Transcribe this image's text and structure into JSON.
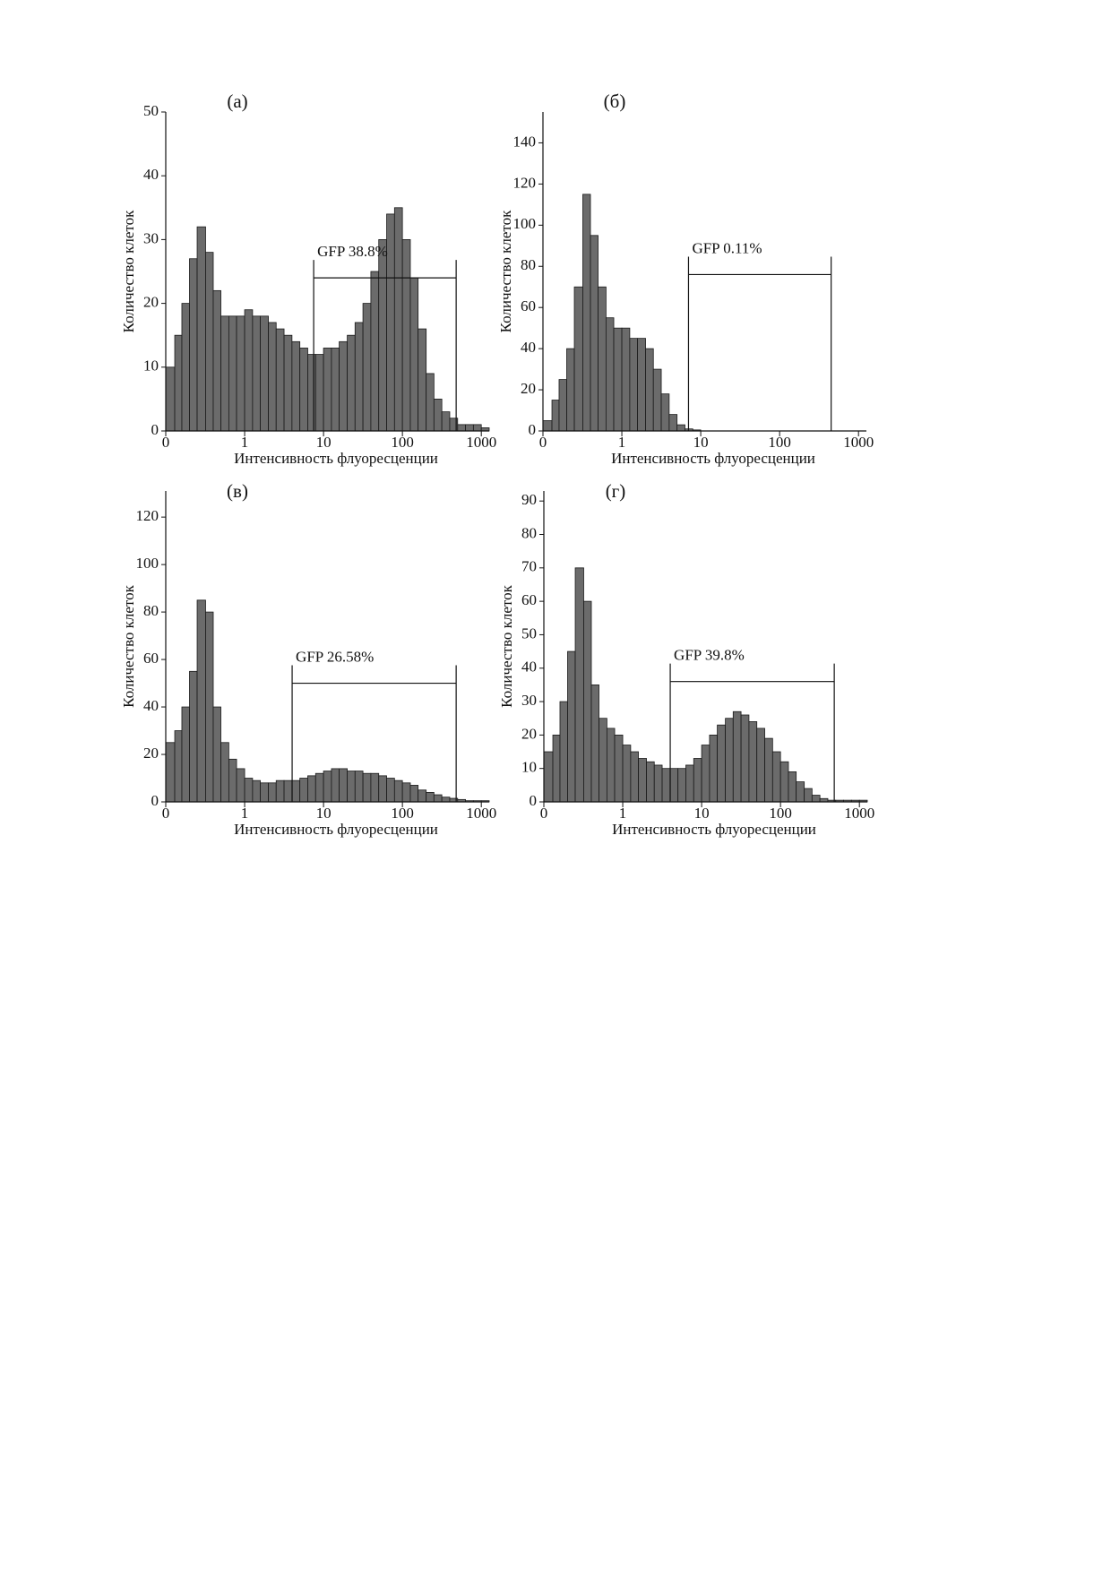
{
  "chart_data": [
    {
      "type": "histogram",
      "title": "(а)",
      "xlabel": "Интенсивность флуоресценции",
      "ylabel": "Количество клеток",
      "xscale": "log",
      "color": "#6b6b6b",
      "bins": [
        0.1,
        0.13,
        0.16,
        0.2,
        0.25,
        0.32,
        0.4,
        0.5,
        0.63,
        0.79,
        1,
        1.26,
        1.58,
        2,
        2.51,
        3.16,
        3.98,
        5.01,
        6.31,
        7.94,
        10,
        12.6,
        15.8,
        20,
        25.1,
        31.6,
        39.8,
        50.1,
        63.1,
        79.4,
        100,
        126,
        158,
        200,
        251,
        316,
        398,
        501,
        631,
        794,
        1000,
        1259
      ],
      "values": [
        10,
        15,
        20,
        27,
        32,
        28,
        22,
        18,
        18,
        18,
        19,
        18,
        18,
        17,
        16,
        15,
        14,
        13,
        12,
        12,
        13,
        13,
        14,
        15,
        17,
        20,
        25,
        30,
        34,
        35,
        30,
        24,
        16,
        9,
        5,
        3,
        2,
        1,
        1,
        1,
        0.5
      ],
      "xlim": [
        0.1,
        1259
      ],
      "xticks": [
        {
          "value": 0.1,
          "label": "0"
        },
        1,
        10,
        100,
        1000
      ],
      "ylim": [
        0,
        50
      ],
      "yticks": [
        0,
        10,
        20,
        30,
        40,
        50
      ],
      "gate": {
        "x": [
          7.5,
          480
        ],
        "y": 24,
        "label": "GFP 38.8%"
      }
    },
    {
      "type": "histogram",
      "title": "(б)",
      "xlabel": "Интенсивность флуоресценции",
      "ylabel": "Количество клеток",
      "xscale": "log",
      "color": "#6b6b6b",
      "bins": [
        0.1,
        0.13,
        0.16,
        0.2,
        0.25,
        0.32,
        0.4,
        0.5,
        0.63,
        0.79,
        1,
        1.26,
        1.58,
        2,
        2.51,
        3.16,
        3.98,
        5.01,
        6.31,
        7.94,
        10,
        12.6,
        15.8,
        20,
        25.1,
        31.6,
        39.8,
        50.1,
        63.1,
        79.4,
        100,
        126,
        158,
        200,
        251,
        316,
        398,
        501,
        631,
        794,
        1000,
        1259
      ],
      "values": [
        5,
        15,
        25,
        40,
        70,
        115,
        95,
        70,
        55,
        50,
        50,
        45,
        45,
        40,
        30,
        18,
        8,
        3,
        1,
        0.5,
        0,
        0,
        0,
        0,
        0,
        0,
        0,
        0,
        0,
        0,
        0,
        0,
        0,
        0,
        0,
        0,
        0,
        0,
        0,
        0,
        0
      ],
      "xlim": [
        0.1,
        1259
      ],
      "xticks": [
        {
          "value": 0.1,
          "label": "0"
        },
        1,
        10,
        100,
        1000
      ],
      "ylim": [
        0,
        155
      ],
      "yticks": [
        0,
        20,
        40,
        60,
        80,
        100,
        120,
        140
      ],
      "gate": {
        "x": [
          7,
          450
        ],
        "y": 76,
        "label": "GFP 0.11%"
      }
    },
    {
      "type": "histogram",
      "title": "(в)",
      "xlabel": "Интенсивность флуоресценции",
      "ylabel": "Количество клеток",
      "xscale": "log",
      "color": "#6b6b6b",
      "bins": [
        0.1,
        0.13,
        0.16,
        0.2,
        0.25,
        0.32,
        0.4,
        0.5,
        0.63,
        0.79,
        1,
        1.26,
        1.58,
        2,
        2.51,
        3.16,
        3.98,
        5.01,
        6.31,
        7.94,
        10,
        12.6,
        15.8,
        20,
        25.1,
        31.6,
        39.8,
        50.1,
        63.1,
        79.4,
        100,
        126,
        158,
        200,
        251,
        316,
        398,
        501,
        631,
        794,
        1000,
        1259
      ],
      "values": [
        25,
        30,
        40,
        55,
        85,
        80,
        40,
        25,
        18,
        14,
        10,
        9,
        8,
        8,
        9,
        9,
        9,
        10,
        11,
        12,
        13,
        14,
        14,
        13,
        13,
        12,
        12,
        11,
        10,
        9,
        8,
        7,
        5,
        4,
        3,
        2,
        1.5,
        1,
        0.5,
        0.5,
        0.5
      ],
      "xlim": [
        0.1,
        1259
      ],
      "xticks": [
        {
          "value": 0.1,
          "label": "0"
        },
        1,
        10,
        100,
        1000
      ],
      "ylim": [
        0,
        131
      ],
      "yticks": [
        0,
        20,
        40,
        60,
        80,
        100,
        120
      ],
      "gate": {
        "x": [
          4,
          480
        ],
        "y": 50,
        "label": "GFP 26.58%"
      }
    },
    {
      "type": "histogram",
      "title": "(г)",
      "xlabel": "Интенсивность флуоресценции",
      "ylabel": "Количество клеток",
      "xscale": "log",
      "color": "#6b6b6b",
      "bins": [
        0.1,
        0.13,
        0.16,
        0.2,
        0.25,
        0.32,
        0.4,
        0.5,
        0.63,
        0.79,
        1,
        1.26,
        1.58,
        2,
        2.51,
        3.16,
        3.98,
        5.01,
        6.31,
        7.94,
        10,
        12.6,
        15.8,
        20,
        25.1,
        31.6,
        39.8,
        50.1,
        63.1,
        79.4,
        100,
        126,
        158,
        200,
        251,
        316,
        398,
        501,
        631,
        794,
        1000,
        1259
      ],
      "values": [
        15,
        20,
        30,
        45,
        70,
        60,
        35,
        25,
        22,
        20,
        17,
        15,
        13,
        12,
        11,
        10,
        10,
        10,
        11,
        13,
        17,
        20,
        23,
        25,
        27,
        26,
        24,
        22,
        19,
        15,
        12,
        9,
        6,
        4,
        2,
        1,
        0.5,
        0.5,
        0.5,
        0.5,
        0.5
      ],
      "xlim": [
        0.1,
        1259
      ],
      "xticks": [
        {
          "value": 0.1,
          "label": "0"
        },
        1,
        10,
        100,
        1000
      ],
      "ylim": [
        0,
        93
      ],
      "yticks": [
        0,
        10,
        20,
        30,
        40,
        50,
        60,
        70,
        80,
        90
      ],
      "gate": {
        "x": [
          4,
          480
        ],
        "y": 36,
        "label": "GFP 39.8%"
      }
    }
  ]
}
